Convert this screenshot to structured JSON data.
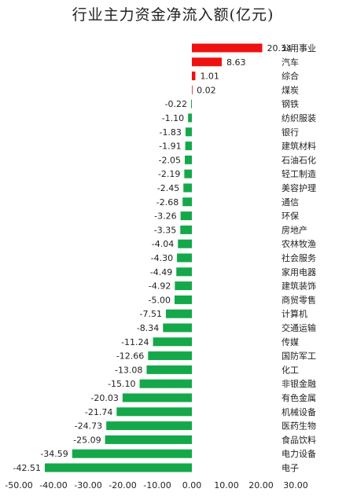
{
  "chart_data": {
    "type": "bar",
    "orientation": "horizontal",
    "title": "行业主力资金净流入额(亿元)",
    "xlabel": "",
    "ylabel": "",
    "xlim": [
      -50,
      30
    ],
    "xticks": [
      "-50.00",
      "-40.00",
      "-30.00",
      "-20.00",
      "-10.00",
      "0.00",
      "10.00",
      "20.00",
      "30.00"
    ],
    "grid": false,
    "legend": "none",
    "colors": {
      "positive": "#ee1111",
      "negative": "#14a84a"
    },
    "categories": [
      "公用事业",
      "汽车",
      "综合",
      "煤炭",
      "钢铁",
      "纺织服装",
      "银行",
      "建筑材料",
      "石油石化",
      "轻工制造",
      "美容护理",
      "通信",
      "环保",
      "房地产",
      "农林牧渔",
      "社会服务",
      "家用电器",
      "建筑装饰",
      "商贸零售",
      "计算机",
      "交通运输",
      "传媒",
      "国防军工",
      "化工",
      "非银金融",
      "有色金属",
      "机械设备",
      "医药生物",
      "食品饮料",
      "电力设备",
      "电子"
    ],
    "values": [
      20.34,
      8.63,
      1.01,
      0.02,
      -0.22,
      -1.1,
      -1.83,
      -1.91,
      -2.05,
      -2.19,
      -2.45,
      -2.68,
      -3.26,
      -3.35,
      -4.04,
      -4.3,
      -4.49,
      -4.92,
      -5.0,
      -7.51,
      -8.34,
      -11.24,
      -12.66,
      -13.08,
      -15.1,
      -20.03,
      -21.74,
      -24.73,
      -25.09,
      -34.59,
      -42.51
    ],
    "value_labels": [
      "20.34",
      "8.63",
      "1.01",
      "0.02",
      "-0.22",
      "-1.10",
      "-1.83",
      "-1.91",
      "-2.05",
      "-2.19",
      "-2.45",
      "-2.68",
      "-3.26",
      "-3.35",
      "-4.04",
      "-4.30",
      "-4.49",
      "-4.92",
      "-5.00",
      "-7.51",
      "-8.34",
      "-11.24",
      "-12.66",
      "-13.08",
      "-15.10",
      "-20.03",
      "-21.74",
      "-24.73",
      "-25.09",
      "-34.59",
      "-42.51"
    ]
  }
}
